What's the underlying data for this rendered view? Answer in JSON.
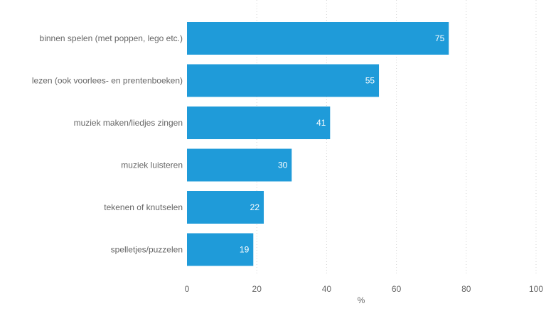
{
  "chart_data": {
    "type": "bar",
    "orientation": "horizontal",
    "categories": [
      "binnen spelen (met poppen, lego etc.)",
      "lezen (ook voorlees- en prentenboeken)",
      "muziek maken/liedjes zingen",
      "muziek luisteren",
      "tekenen of knutselen",
      "spelletjes/puzzelen"
    ],
    "values": [
      75,
      55,
      41,
      30,
      22,
      19
    ],
    "data_labels": [
      "75",
      "55",
      "41",
      "30",
      "22",
      "19"
    ],
    "xlabel": "%",
    "ylabel": "",
    "xlim": [
      0,
      100
    ],
    "x_ticks": [
      0,
      20,
      40,
      60,
      80,
      100
    ],
    "x_tick_labels": [
      "0",
      "20",
      "40",
      "60",
      "80",
      "100"
    ],
    "grid": true,
    "colors": {
      "bar": "#1f9bd9",
      "text": "#666666",
      "grid": "#d4d4d4",
      "data_label": "#ffffff"
    }
  }
}
